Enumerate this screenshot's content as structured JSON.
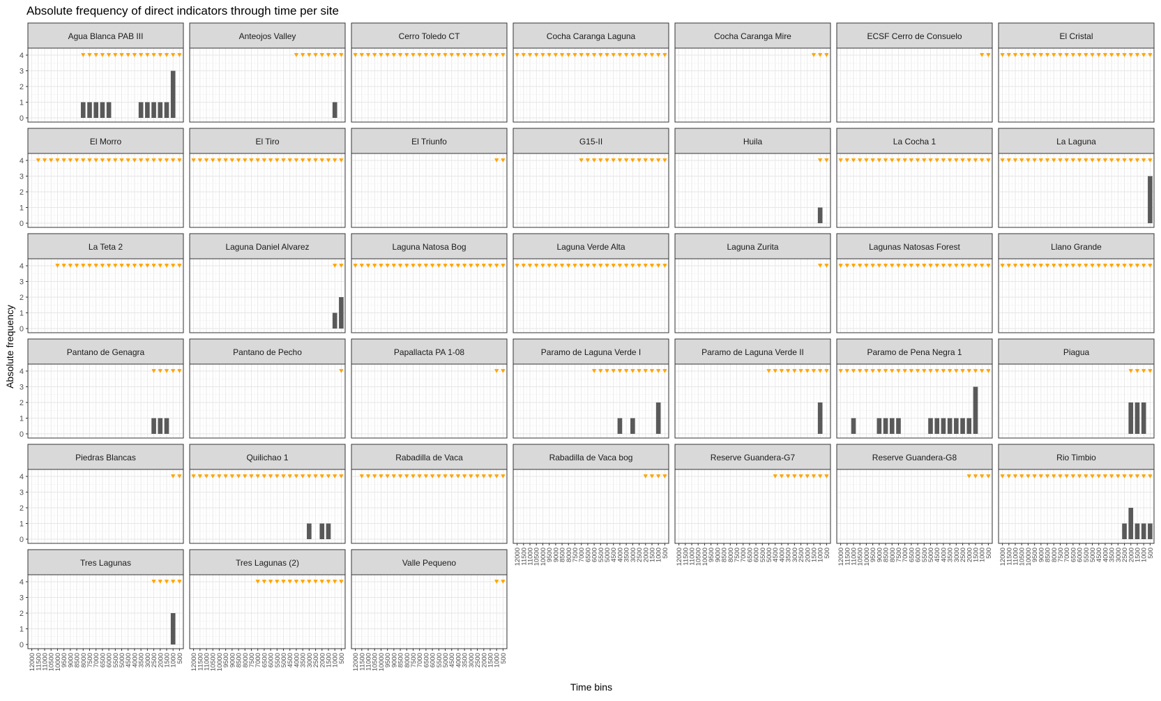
{
  "chart_data": {
    "type": "bar",
    "title": "Absolute frequency of direct indicators through time per site",
    "xlabel": "Time bins",
    "ylabel": "Absolute frequency",
    "ylim": [
      0,
      4
    ],
    "y_ticks": [
      "0",
      "1",
      "2",
      "3",
      "4"
    ],
    "x_ticks": [
      "12000",
      "11500",
      "11000",
      "10500",
      "10000",
      "9500",
      "9000",
      "8500",
      "8000",
      "7500",
      "7000",
      "6500",
      "6000",
      "5500",
      "5000",
      "4500",
      "4000",
      "3500",
      "3000",
      "2500",
      "2000",
      "1500",
      "1000",
      "500"
    ],
    "grid": true,
    "marker_color": "#FFA500",
    "bar_color": "#595959",
    "facets": [
      {
        "site": "Agua Blanca PAB III",
        "values": {
          "8000": 1,
          "7500": 1,
          "7000": 1,
          "6500": 1,
          "6000": 1,
          "3500": 1,
          "3000": 1,
          "2500": 1,
          "2000": 1,
          "1500": 1,
          "1000": 3
        },
        "markers_from": "8000"
      },
      {
        "site": "Anteojos Valley",
        "values": {
          "1000": 1
        },
        "markers_from": "4000"
      },
      {
        "site": "Cerro Toledo CT",
        "values": {},
        "markers_from": "12000"
      },
      {
        "site": "Cocha Caranga Laguna",
        "values": {},
        "markers_from": "12000"
      },
      {
        "site": "Cocha Caranga Mire",
        "values": {},
        "markers_from": "1500"
      },
      {
        "site": "ECSF Cerro de Consuelo",
        "values": {},
        "markers_from": "1000"
      },
      {
        "site": "El Cristal",
        "values": {},
        "markers_from": "12000"
      },
      {
        "site": "El Morro",
        "values": {},
        "markers_from": "11500"
      },
      {
        "site": "El Tiro",
        "values": {},
        "markers_from": "12000"
      },
      {
        "site": "El Triunfo",
        "values": {},
        "markers_from": "1000"
      },
      {
        "site": "G15-II",
        "values": {},
        "markers_from": "7000"
      },
      {
        "site": "Huila",
        "values": {
          "1000": 1
        },
        "markers_from": "1000"
      },
      {
        "site": "La Cocha 1",
        "values": {},
        "markers_from": "12000"
      },
      {
        "site": "La Laguna",
        "values": {
          "500": 3
        },
        "markers_from": "12000"
      },
      {
        "site": "La Teta 2",
        "values": {},
        "markers_from": "10000"
      },
      {
        "site": "Laguna Daniel Alvarez",
        "values": {
          "1000": 1,
          "500": 2
        },
        "markers_from": "1000"
      },
      {
        "site": "Laguna Natosa Bog",
        "values": {},
        "markers_from": "12000"
      },
      {
        "site": "Laguna Verde Alta",
        "values": {},
        "markers_from": "12000"
      },
      {
        "site": "Laguna Zurita",
        "values": {},
        "markers_from": "1000"
      },
      {
        "site": "Lagunas Natosas Forest",
        "values": {},
        "markers_from": "12000"
      },
      {
        "site": "Llano Grande",
        "values": {},
        "markers_from": "12000"
      },
      {
        "site": "Pantano de Genagra",
        "values": {
          "2500": 1,
          "2000": 1,
          "1500": 1
        },
        "markers_from": "2500"
      },
      {
        "site": "Pantano de Pecho",
        "values": {},
        "markers_from": "500"
      },
      {
        "site": "Papallacta PA 1-08",
        "values": {},
        "markers_from": "1000"
      },
      {
        "site": "Paramo de Laguna Verde I",
        "values": {
          "4000": 1,
          "3000": 1,
          "1000": 2
        },
        "markers_from": "6000"
      },
      {
        "site": "Paramo de Laguna Verde II",
        "values": {
          "1000": 2
        },
        "markers_from": "5000"
      },
      {
        "site": "Paramo de Pena Negra 1",
        "values": {
          "11000": 1,
          "9000": 1,
          "8500": 1,
          "8000": 1,
          "7500": 1,
          "5000": 1,
          "4500": 1,
          "4000": 1,
          "3500": 1,
          "3000": 1,
          "2500": 1,
          "2000": 1,
          "1500": 3
        },
        "markers_from": "12000"
      },
      {
        "site": "Piagua",
        "values": {
          "2000": 2,
          "1500": 2,
          "1000": 2
        },
        "markers_from": "2000"
      },
      {
        "site": "Piedras Blancas",
        "values": {},
        "markers_from": "1000"
      },
      {
        "site": "Quilichao 1",
        "values": {
          "3000": 1,
          "2000": 1,
          "1500": 1
        },
        "markers_from": "12000"
      },
      {
        "site": "Rabadilla de Vaca",
        "values": {},
        "markers_from": "11500"
      },
      {
        "site": "Rabadilla de Vaca bog",
        "values": {},
        "markers_from": "2000"
      },
      {
        "site": "Reserve Guandera-G7",
        "values": {},
        "markers_from": "4500"
      },
      {
        "site": "Reserve Guandera-G8",
        "values": {},
        "markers_from": "2000"
      },
      {
        "site": "Rio Timbio",
        "values": {
          "2500": 1,
          "2000": 2,
          "1500": 1,
          "1000": 1,
          "500": 1
        },
        "markers_from": "12000"
      },
      {
        "site": "Tres Lagunas",
        "values": {
          "1000": 2
        },
        "markers_from": "2500"
      },
      {
        "site": "Tres Lagunas (2)",
        "values": {},
        "markers_from": "7000"
      },
      {
        "site": "Valle Pequeno",
        "values": {},
        "markers_from": "1000"
      }
    ]
  }
}
